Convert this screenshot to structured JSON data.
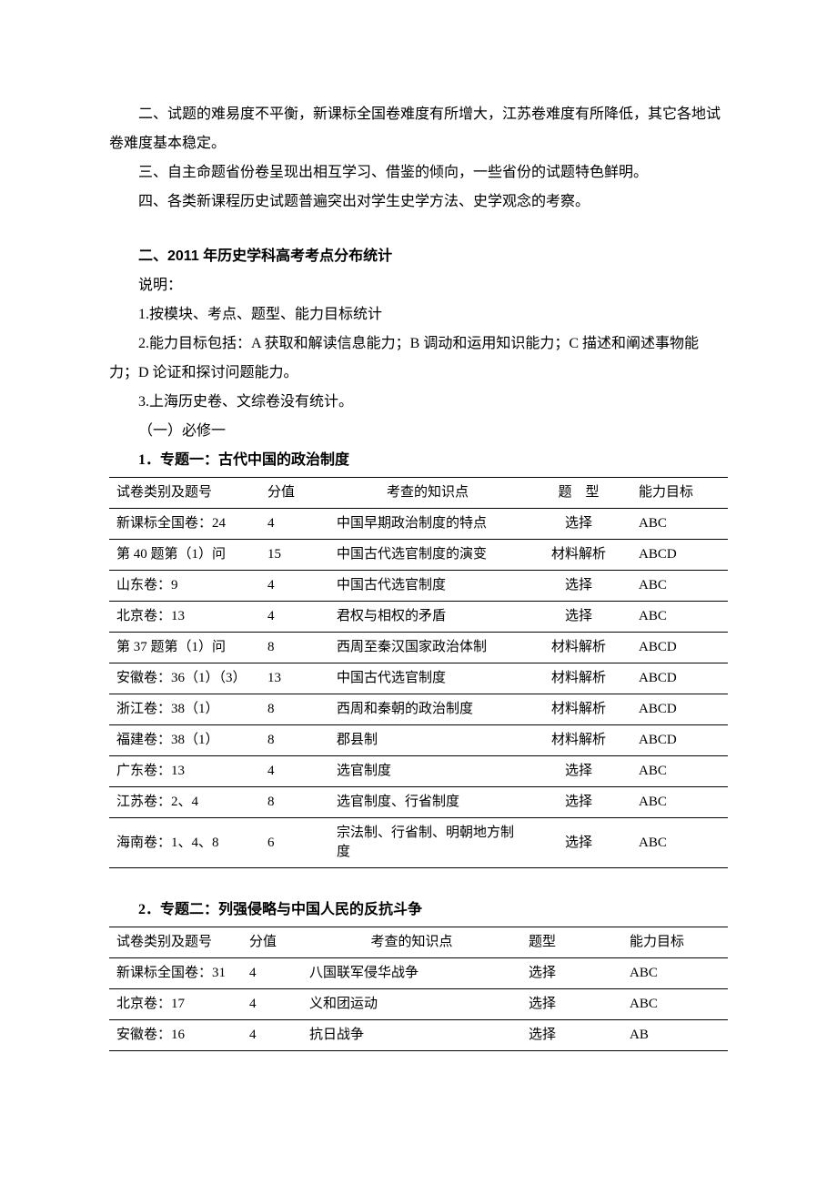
{
  "intro": {
    "p1": "二、试题的难易度不平衡，新课标全国卷难度有所增大，江苏卷难度有所降低，其它各地试卷难度基本稳定。",
    "p2": "三、自主命题省份卷呈现出相互学习、借鉴的倾向，一些省份的试题特色鲜明。",
    "p3": "四、各类新课程历史试题普遍突出对学生史学方法、史学观念的考察。"
  },
  "section2": {
    "heading": "二、2011 年历史学科高考考点分布统计",
    "note_label": "说明：",
    "note1": "1.按模块、考点、题型、能力目标统计",
    "note2": "2.能力目标包括：A 获取和解读信息能力；B 调动和运用知识能力；C 描述和阐述事物能力；D 论证和探讨问题能力。",
    "note3": "3.上海历史卷、文综卷没有统计。",
    "sub1": "（一）必修一"
  },
  "table1": {
    "title": "1．专题一：古代中国的政治制度",
    "columns": [
      "试卷类别及题号",
      "分值",
      "考查的知识点",
      "题　型",
      "能力目标"
    ],
    "rows": [
      [
        "新课标全国卷：24",
        "4",
        "中国早期政治制度的特点",
        "选择",
        "ABC"
      ],
      [
        "第 40 题第（1）问",
        "15",
        "中国古代选官制度的演变",
        "材料解析",
        "ABCD"
      ],
      [
        "山东卷：9",
        "4",
        "中国古代选官制度",
        "选择",
        "ABC"
      ],
      [
        "北京卷：13",
        "4",
        "君权与相权的矛盾",
        "选择",
        "ABC"
      ],
      [
        "第 37 题第（1）问",
        "8",
        "西周至秦汉国家政治体制",
        "材料解析",
        "ABCD"
      ],
      [
        "安徽卷：36（1）（3）",
        "13",
        "中国古代选官制度",
        "材料解析",
        "ABCD"
      ],
      [
        "浙江卷：38（1）",
        "8",
        "西周和秦朝的政治制度",
        "材料解析",
        "ABCD"
      ],
      [
        "福建卷：38（1）",
        "8",
        "郡县制",
        "材料解析",
        "ABCD"
      ],
      [
        "广东卷：13",
        "4",
        "选官制度",
        "选择",
        "ABC"
      ],
      [
        "江苏卷：2、4",
        "8",
        "选官制度、行省制度",
        "选择",
        "ABC"
      ],
      [
        "海南卷：1、4、8",
        "6",
        "宗法制、行省制、明朝地方制度",
        "选择",
        "ABC"
      ]
    ]
  },
  "table2": {
    "title": "2．专题二：列强侵略与中国人民的反抗斗争",
    "columns": [
      "试卷类别及题号",
      "分值",
      "考查的知识点",
      "题型",
      "能力目标"
    ],
    "rows": [
      [
        "新课标全国卷：31",
        "4",
        "八国联军侵华战争",
        "选择",
        "ABC"
      ],
      [
        "北京卷：17",
        "4",
        "义和团运动",
        "选择",
        "ABC"
      ],
      [
        "安徽卷：16",
        "4",
        "抗日战争",
        "选择",
        "AB"
      ]
    ]
  }
}
